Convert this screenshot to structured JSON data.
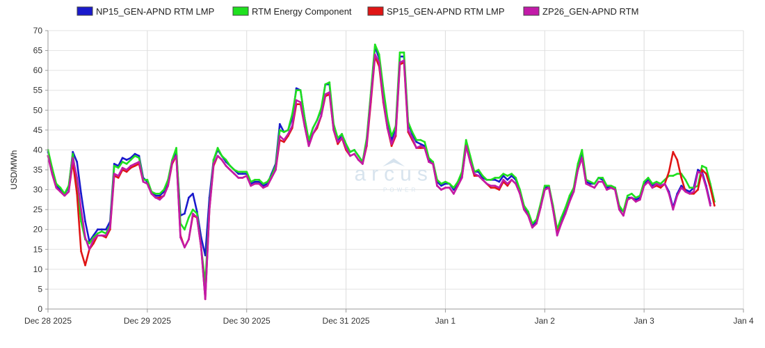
{
  "chart_data": {
    "type": "line",
    "ylabel": "USD/MWh",
    "ylim": [
      0,
      70
    ],
    "yticks": [
      0,
      5,
      10,
      15,
      20,
      25,
      30,
      35,
      40,
      45,
      50,
      55,
      60,
      65,
      70
    ],
    "xlim": [
      0,
      7
    ],
    "xticks": [
      {
        "x": 0,
        "label": "Dec 28 2025"
      },
      {
        "x": 1,
        "label": "Dec 29 2025"
      },
      {
        "x": 2,
        "label": "Dec 30 2025"
      },
      {
        "x": 3,
        "label": "Dec 31 2025"
      },
      {
        "x": 4,
        "label": "Jan 1"
      },
      {
        "x": 5,
        "label": "Jan 2"
      },
      {
        "x": 6,
        "label": "Jan 3"
      },
      {
        "x": 7,
        "label": "Jan 4"
      }
    ],
    "grid": true,
    "legend_position": "top",
    "x_step_hours": 1,
    "watermark": {
      "text": "arcus",
      "subtext": "POWER"
    },
    "series": [
      {
        "name": "NP15_GEN-APND RTM LMP",
        "color": "#1a1acc",
        "values": [
          39.5,
          35,
          31,
          30,
          29,
          30.5,
          39.5,
          37,
          29,
          22,
          17,
          18.5,
          20,
          20,
          20,
          22,
          36.5,
          36,
          38,
          37.5,
          38,
          39,
          38.5,
          33,
          32,
          29.5,
          28.5,
          28.5,
          29.5,
          32,
          37,
          39.5,
          23.5,
          24,
          28,
          29,
          24.5,
          18,
          13.5,
          28,
          37.5,
          40,
          38.5,
          37,
          36,
          35,
          34,
          34,
          34,
          31.5,
          32,
          32,
          31,
          31.5,
          34,
          36.5,
          46.5,
          44.5,
          45,
          48,
          55.5,
          55,
          48,
          42,
          45.5,
          47.5,
          50,
          56.5,
          56.5,
          46,
          42,
          44,
          41,
          39.5,
          40,
          38.5,
          37,
          42.5,
          54,
          66,
          63,
          55,
          47.5,
          42.5,
          45.5,
          63.5,
          63.5,
          46.5,
          44,
          42,
          41.5,
          41,
          37.5,
          37,
          32,
          31,
          31.5,
          31.5,
          30,
          31.5,
          34,
          42,
          38,
          34.5,
          34.5,
          33,
          32.5,
          32.5,
          32.5,
          32,
          33.5,
          32.5,
          33.5,
          32.5,
          30,
          25.5,
          24,
          21,
          22,
          26,
          30.5,
          31,
          25.5,
          19,
          22,
          25,
          28,
          30,
          36,
          39.5,
          32,
          31.5,
          31.5,
          33,
          32.5,
          30.5,
          31,
          30.5,
          25.5,
          24.5,
          28,
          28,
          27.5,
          28,
          31.5,
          32.5,
          31,
          31.5,
          31,
          31.5,
          29.5,
          25.5,
          29,
          31,
          30,
          29.5,
          30.5,
          35,
          34.5,
          31,
          26.5
        ]
      },
      {
        "name": "RTM Energy Component",
        "color": "#1fe01f",
        "values": [
          40,
          35.5,
          31.5,
          30.5,
          29,
          31,
          39,
          31,
          22,
          17.5,
          16.5,
          18,
          19,
          19.5,
          19,
          21,
          36,
          35.5,
          37,
          36.5,
          37.5,
          38.5,
          38,
          32.5,
          32.5,
          29.5,
          29,
          29,
          30,
          32.5,
          37.5,
          40.5,
          21.5,
          20,
          23,
          25,
          24,
          15.5,
          6.5,
          25.5,
          37.5,
          40.5,
          38.5,
          37.5,
          36,
          35,
          34.5,
          34.5,
          34.5,
          32,
          32.5,
          32.5,
          31.5,
          32,
          33.5,
          36,
          45,
          44.5,
          45,
          49,
          55,
          55,
          48,
          42.5,
          45.5,
          47.5,
          50.5,
          56.5,
          57,
          46.5,
          43,
          44,
          41.5,
          39.5,
          40,
          38.5,
          37,
          43,
          54.5,
          66.5,
          64,
          55.5,
          48,
          43.5,
          46,
          64.5,
          64.5,
          47,
          44.5,
          42.5,
          42.5,
          42,
          38,
          37,
          32.5,
          31.5,
          32,
          31.5,
          30.5,
          32,
          34.5,
          42.5,
          38.5,
          34.5,
          35,
          33.5,
          32.5,
          32.5,
          33,
          33,
          34,
          33.5,
          34,
          33,
          30,
          26,
          24.5,
          21.5,
          22.5,
          26.5,
          31,
          31,
          26,
          20,
          23,
          25.5,
          28.5,
          30.5,
          36.5,
          40,
          32.5,
          32,
          31.5,
          33,
          33,
          31,
          31,
          30.5,
          26,
          24.5,
          28.5,
          29,
          28,
          28.5,
          32,
          33,
          31.5,
          32,
          31.5,
          32.5,
          33.5,
          33.5,
          34,
          34,
          32.5,
          30.5,
          30.5,
          31,
          36,
          35.5,
          31.5,
          27
        ]
      },
      {
        "name": "SP15_GEN-APND RTM LMP",
        "color": "#e01515",
        "values": [
          38.5,
          34,
          30.5,
          29.5,
          28.5,
          29.5,
          37,
          29,
          14.5,
          11,
          15,
          16.5,
          18.5,
          18.5,
          18,
          20,
          33.5,
          33,
          35,
          34.5,
          35.5,
          36,
          36.5,
          32,
          31.5,
          29,
          28,
          28,
          28.5,
          31,
          36.5,
          38.5,
          18.5,
          15.5,
          17.5,
          23.5,
          23,
          15.5,
          2.5,
          25,
          36,
          38.5,
          37.5,
          36,
          35,
          34,
          33,
          33,
          33.5,
          31,
          31.5,
          31.5,
          30.5,
          31,
          33,
          35,
          42.5,
          42,
          43.5,
          45.5,
          51.5,
          51.5,
          46,
          41,
          44,
          45.5,
          48.5,
          53.5,
          54,
          45,
          41.5,
          43,
          40,
          38.5,
          39,
          37.5,
          36.5,
          41,
          52,
          63.5,
          61,
          52,
          45.5,
          41,
          43.5,
          61.5,
          62,
          44.5,
          42.5,
          40.5,
          40.5,
          40.5,
          37,
          36.5,
          31,
          30,
          30.5,
          30.5,
          29,
          31,
          33,
          41,
          37,
          33.5,
          33.5,
          32.5,
          31.5,
          30.5,
          30.5,
          30,
          32,
          31,
          32.5,
          31.5,
          29,
          25,
          23.5,
          20.5,
          21.5,
          25.5,
          30,
          30.5,
          25,
          19,
          21.5,
          24,
          27,
          29.5,
          35,
          38,
          31.5,
          31,
          30.5,
          32,
          32,
          30,
          30.5,
          30,
          25,
          23.5,
          27.5,
          28,
          27,
          27.5,
          31,
          32,
          30.5,
          31,
          30.5,
          31.5,
          34.5,
          39.5,
          37.5,
          33,
          29.5,
          29,
          29,
          30,
          35,
          34,
          30.5,
          26
        ]
      },
      {
        "name": "ZP26_GEN-APND RTM",
        "color": "#c21aa8",
        "values": [
          38.5,
          34,
          30.5,
          29.5,
          28.5,
          29.5,
          38,
          33,
          25,
          18,
          15,
          17.5,
          18.5,
          18.5,
          18.5,
          20.5,
          34,
          33.5,
          35.5,
          35,
          36,
          36.5,
          37,
          32,
          31.5,
          29,
          28,
          27.5,
          28.5,
          31,
          37,
          38.5,
          18,
          15.5,
          17.5,
          24,
          23,
          15.5,
          2.5,
          25,
          36.5,
          38.5,
          37.5,
          36,
          35,
          34,
          33,
          33,
          33.5,
          31,
          31.5,
          31.5,
          30.5,
          31,
          33,
          35,
          43.5,
          42.5,
          44,
          46,
          52.5,
          52,
          46,
          41,
          44,
          46,
          48.5,
          54,
          54.5,
          45,
          42,
          43,
          40.5,
          38.5,
          39,
          37.5,
          36.5,
          41.5,
          53,
          64,
          62,
          52.5,
          45.5,
          41.5,
          44,
          62,
          62.5,
          45,
          43,
          40.5,
          41,
          40.5,
          37,
          36.5,
          31,
          30,
          30.5,
          30.5,
          29,
          31,
          33,
          41,
          37,
          34,
          33.5,
          32.5,
          31.5,
          31,
          31,
          30.5,
          32.5,
          31.5,
          32.5,
          31.5,
          29,
          25,
          23.5,
          20.5,
          21.5,
          25.5,
          30,
          30.5,
          25,
          18.5,
          21.5,
          24,
          27,
          29.5,
          35,
          38,
          31.5,
          31,
          30.5,
          32,
          32,
          30,
          30.5,
          30,
          25,
          23.5,
          27.5,
          28,
          27,
          27.5,
          31,
          32,
          30.5,
          31.5,
          31,
          31.5,
          29,
          25,
          28.5,
          30.5,
          29.5,
          29,
          29.5,
          34.5,
          34,
          30.5,
          26
        ]
      }
    ]
  }
}
